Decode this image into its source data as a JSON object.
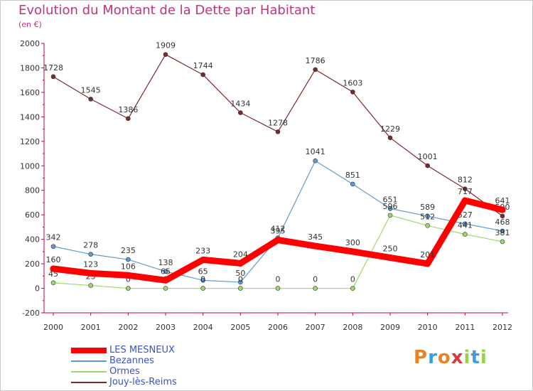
{
  "chart_data": {
    "type": "line",
    "title": "Evolution du Montant de la Dette par Habitant",
    "subtitle": "(en €)",
    "categories": [
      "2000",
      "2001",
      "2002",
      "2003",
      "2004",
      "2005",
      "2006",
      "2007",
      "2008",
      "2009",
      "2010",
      "2011",
      "2012"
    ],
    "ylim": [
      -200,
      2000
    ],
    "yticks": [
      -200,
      0,
      200,
      400,
      600,
      800,
      1000,
      1200,
      1400,
      1600,
      1800,
      2000
    ],
    "grid": false,
    "legend_position": "bottom-left",
    "series": [
      {
        "name": "LES MESNEUX",
        "color": "#ff0000",
        "values": [
          160,
          123,
          106,
          65,
          233,
          204,
          395,
          345,
          300,
          250,
          201,
          717,
          641
        ]
      },
      {
        "name": "Bezannes",
        "color": "#5f9bd2",
        "values": [
          342,
          278,
          235,
          138,
          65,
          50,
          412,
          1041,
          851,
          651,
          589,
          527,
          468
        ]
      },
      {
        "name": "Ormes",
        "color": "#9ad96a",
        "values": [
          45,
          23,
          0,
          0,
          0,
          0,
          0,
          0,
          0,
          596,
          512,
          441,
          381
        ]
      },
      {
        "name": "Jouy-lès-Reims",
        "color": "#7a2a2a",
        "values": [
          1728,
          1545,
          1386,
          1909,
          1744,
          1434,
          1278,
          1786,
          1603,
          1229,
          1001,
          812,
          590
        ]
      }
    ]
  },
  "logo": {
    "letters": [
      "P",
      "r",
      "o",
      "x",
      "i",
      "t",
      "i"
    ],
    "colors": [
      "#e8832a",
      "#39a0d6",
      "#e8832a",
      "#d23b3b",
      "#9ad14a",
      "#39a0d6",
      "#9ad14a"
    ]
  }
}
